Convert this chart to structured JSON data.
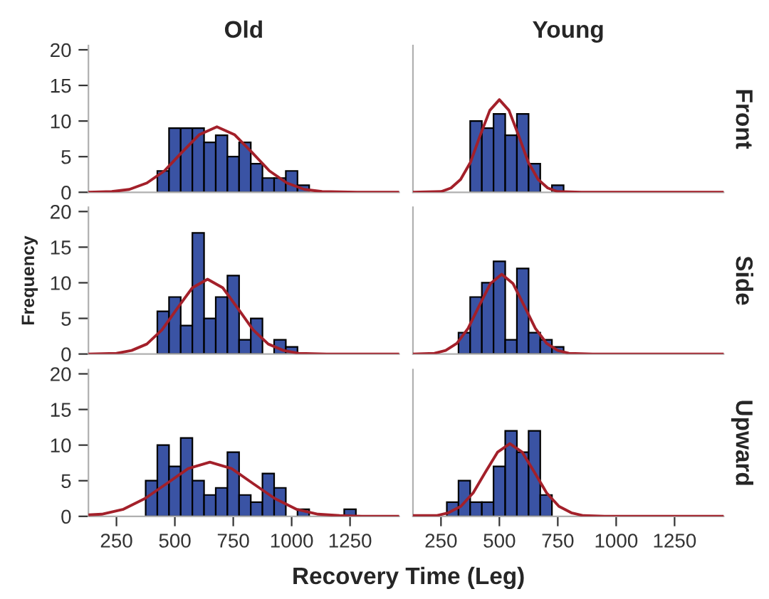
{
  "chart_data": [
    {
      "type": "histogram",
      "title": "Old",
      "xlim": [
        130,
        1460
      ],
      "ylim": [
        0,
        20.6
      ],
      "xticks": [
        250,
        500,
        750,
        1000,
        1250
      ],
      "yticks": [
        0,
        5,
        10,
        15,
        20
      ],
      "tick_labels": "y",
      "grid": false,
      "legend": false,
      "series": [
        {
          "color": "#3a53a4",
          "bins": [
            425,
            475,
            525,
            575,
            625,
            675,
            725,
            775,
            825,
            875,
            925,
            975,
            1025,
            1075
          ],
          "values": [
            3,
            9,
            9,
            9,
            7,
            8,
            5,
            7,
            4,
            2,
            2,
            3,
            1
          ]
        },
        {
          "type": "line",
          "color": "#a3202a",
          "x": [
            130,
            230,
            305,
            380,
            455,
            530,
            605,
            680,
            755,
            830,
            905,
            980,
            1055,
            1130,
            1280,
            1460
          ],
          "values": [
            0.0,
            0.1,
            0.4,
            1.3,
            3.0,
            5.6,
            8.1,
            9.2,
            8.1,
            5.6,
            3.0,
            1.3,
            0.4,
            0.1,
            0.0,
            0.0
          ]
        }
      ]
    },
    {
      "type": "histogram",
      "title": "Young",
      "y2label": "Front",
      "xlim": [
        130,
        1460
      ],
      "ylim": [
        0,
        20.6
      ],
      "xticks": [
        250,
        500,
        750,
        1000,
        1250
      ],
      "yticks": [
        0,
        5,
        10,
        15,
        20
      ],
      "tick_labels": false,
      "grid": false,
      "legend": false,
      "series": [
        {
          "color": "#3a53a4",
          "bins": [
            375,
            425,
            475,
            525,
            575,
            625,
            675,
            725,
            775
          ],
          "values": [
            10,
            9,
            11,
            8,
            11,
            4,
            0,
            1
          ]
        },
        {
          "type": "line",
          "color": "#a3202a",
          "x": [
            130,
            251,
            293,
            334,
            376,
            417,
            459,
            500,
            541,
            583,
            624,
            666,
            707,
            749,
            850,
            1460
          ],
          "values": [
            0.0,
            0.1,
            0.6,
            1.8,
            4.2,
            7.9,
            11.5,
            13.0,
            11.5,
            7.9,
            4.2,
            1.8,
            0.6,
            0.1,
            0.0,
            0.0
          ]
        }
      ]
    },
    {
      "type": "histogram",
      "ylabel": "Frequency",
      "xlim": [
        130,
        1460
      ],
      "ylim": [
        0,
        20.6
      ],
      "xticks": [
        250,
        500,
        750,
        1000,
        1250
      ],
      "yticks": [
        0,
        5,
        10,
        15,
        20
      ],
      "tick_labels": "y",
      "grid": false,
      "legend": false,
      "series": [
        {
          "color": "#3a53a4",
          "bins": [
            425,
            475,
            525,
            575,
            625,
            675,
            725,
            775,
            825,
            875,
            925,
            975,
            1025
          ],
          "values": [
            6,
            8,
            4,
            17,
            5,
            8,
            11,
            2,
            5,
            0,
            2,
            1
          ]
        },
        {
          "type": "line",
          "color": "#a3202a",
          "x": [
            130,
            250,
            315,
            380,
            445,
            510,
            575,
            640,
            705,
            770,
            835,
            900,
            965,
            1030,
            1150,
            1460
          ],
          "values": [
            0.0,
            0.1,
            0.5,
            1.4,
            3.4,
            6.4,
            9.3,
            10.5,
            9.3,
            6.4,
            3.4,
            1.4,
            0.5,
            0.1,
            0.0,
            0.0
          ]
        }
      ]
    },
    {
      "type": "histogram",
      "y2label": "Side",
      "xlim": [
        130,
        1460
      ],
      "ylim": [
        0,
        20.6
      ],
      "xticks": [
        250,
        500,
        750,
        1000,
        1250
      ],
      "yticks": [
        0,
        5,
        10,
        15,
        20
      ],
      "tick_labels": false,
      "grid": false,
      "legend": false,
      "series": [
        {
          "color": "#3a53a4",
          "bins": [
            325,
            375,
            425,
            475,
            525,
            575,
            625,
            675,
            725,
            775
          ],
          "values": [
            3,
            8,
            10,
            13,
            2,
            12,
            3,
            2,
            1
          ]
        },
        {
          "type": "line",
          "color": "#a3202a",
          "x": [
            130,
            222,
            270,
            318,
            366,
            414,
            462,
            510,
            558,
            606,
            654,
            702,
            750,
            798,
            900,
            1460
          ],
          "values": [
            0.0,
            0.1,
            0.5,
            1.5,
            3.6,
            6.8,
            9.9,
            11.2,
            9.9,
            6.8,
            3.6,
            1.5,
            0.5,
            0.1,
            0.0,
            0.0
          ]
        }
      ]
    },
    {
      "type": "histogram",
      "xlabel": "Recovery Time (Leg)",
      "xlim": [
        130,
        1460
      ],
      "ylim": [
        0,
        20.6
      ],
      "xticks": [
        250,
        500,
        750,
        1000,
        1250
      ],
      "yticks": [
        0,
        5,
        10,
        15,
        20
      ],
      "grid": false,
      "legend": false,
      "series": [
        {
          "color": "#3a53a4",
          "bins": [
            375,
            425,
            475,
            525,
            575,
            625,
            675,
            725,
            775,
            825,
            875,
            925,
            975,
            1025,
            1075,
            1125,
            1175,
            1225,
            1275
          ],
          "values": [
            5,
            10,
            7,
            11,
            5,
            3,
            4,
            9,
            3,
            2,
            6,
            4,
            0,
            1,
            0,
            0,
            0,
            1
          ]
        },
        {
          "type": "line",
          "color": "#a3202a",
          "x": [
            130,
            187,
            280,
            372,
            465,
            557,
            650,
            743,
            835,
            928,
            1020,
            1113,
            1205,
            1300,
            1460
          ],
          "values": [
            0.2,
            0.3,
            1.0,
            2.5,
            4.6,
            6.7,
            7.6,
            6.7,
            4.6,
            2.5,
            1.0,
            0.3,
            0.1,
            0.0,
            0.0
          ]
        }
      ]
    },
    {
      "type": "histogram",
      "y2label": "Upward",
      "xlim": [
        130,
        1460
      ],
      "ylim": [
        0,
        20.6
      ],
      "xticks": [
        250,
        500,
        750,
        1000,
        1250
      ],
      "yticks": [
        0,
        5,
        10,
        15,
        20
      ],
      "tick_labels": "x",
      "grid": false,
      "legend": false,
      "series": [
        {
          "color": "#3a53a4",
          "bins": [
            275,
            325,
            375,
            425,
            475,
            525,
            575,
            625,
            675,
            725
          ],
          "values": [
            2,
            5,
            2,
            2,
            7,
            12,
            9,
            12,
            3
          ]
        },
        {
          "type": "line",
          "color": "#a3202a",
          "x": [
            130,
            230,
            282,
            335,
            388,
            440,
            492,
            545,
            598,
            650,
            702,
            755,
            808,
            860,
            950,
            1460
          ],
          "values": [
            0.1,
            0.1,
            0.5,
            1.4,
            3.3,
            6.2,
            9.0,
            10.2,
            9.0,
            6.2,
            3.3,
            1.4,
            0.5,
            0.1,
            0.0,
            0.0
          ]
        }
      ]
    }
  ]
}
